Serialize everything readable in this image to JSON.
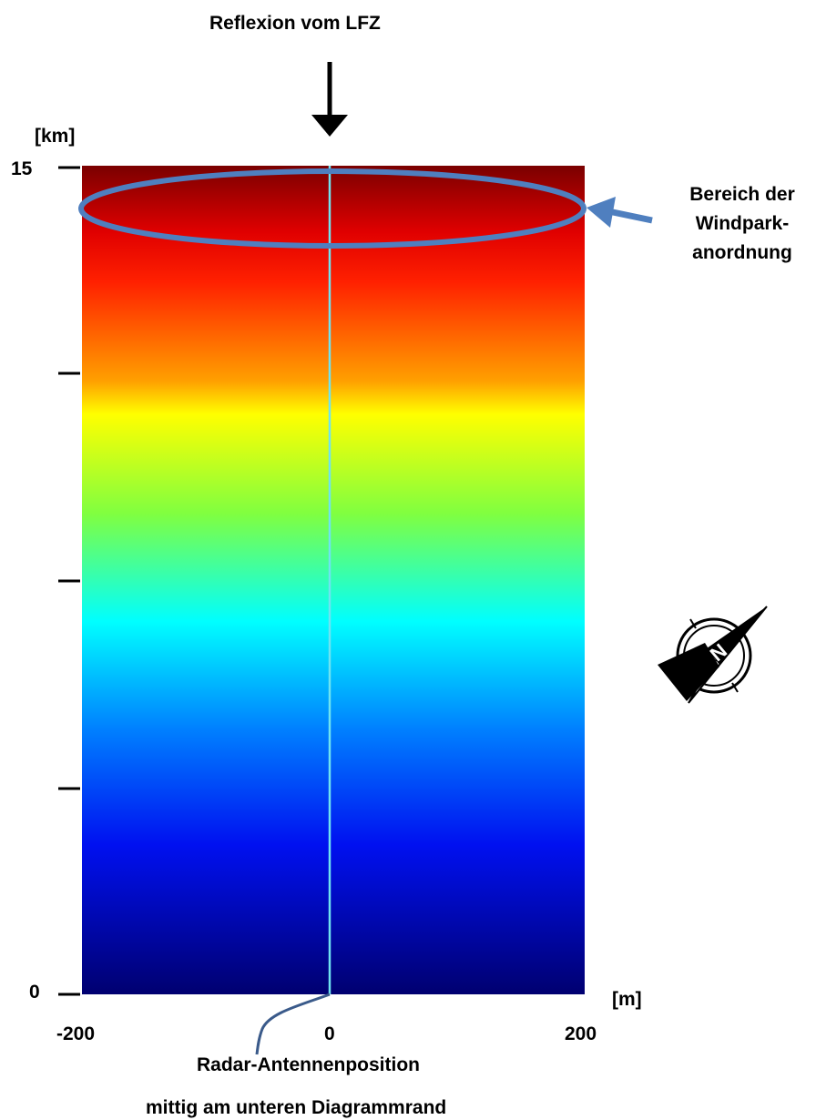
{
  "labels": {
    "top_arrow_label": "Reflexion vom LFZ",
    "windpark_area": [
      "Bereich der",
      "Windpark-",
      "anordnung"
    ],
    "radar_position": "Radar-Antennenposition",
    "radar_position_note": "mittig am unteren Diagrammrand"
  },
  "axes": {
    "y_unit": "[km]",
    "y_max": "15",
    "y_min": "0",
    "x_unit": "[m]",
    "x_ticks": [
      "-200",
      "0",
      "200"
    ]
  },
  "colors": {
    "ellipse_stroke": "#4f7fbf",
    "center_line": "#6fe3f0",
    "gradient_top_to_bottom": [
      "#8b0000",
      "#ff2000",
      "#ffff00",
      "#00ffff",
      "#0040ff",
      "#000080"
    ]
  },
  "icons": {
    "compass": "north-arrow-compass-icon"
  }
}
